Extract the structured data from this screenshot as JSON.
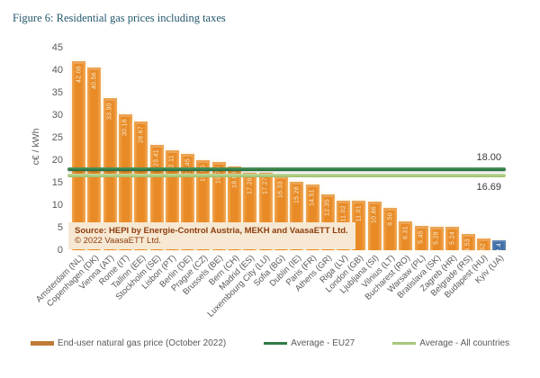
{
  "figure": {
    "title": "Figure 6: Residential gas prices including taxes",
    "title_color": "#24586c"
  },
  "chart_data": {
    "type": "bar",
    "title": "Figure 6: Residential gas prices including taxes",
    "xlabel": "",
    "ylabel": "c€ /  kWh",
    "ylim": [
      0,
      45
    ],
    "yticks": [
      0,
      5,
      10,
      15,
      20,
      25,
      30,
      35,
      40,
      45
    ],
    "grid": false,
    "categories": [
      "Amsterdam (NL)",
      "Copenhagen (DK)",
      "Vienna (AT)",
      "Rome (IT)",
      "Tallinn (EE)",
      "Stockholm (SE)",
      "Lisbon (PT)",
      "Berlin (DE)",
      "Prague (CZ)",
      "Brussels (BE)",
      "Bern (CH)",
      "Madrid (ES)",
      "Luxembourg City (LU)",
      "Sofia (BG)",
      "Dublin (IE)",
      "Paris (FR)",
      "Athens (GR)",
      "Riga (LV)",
      "London (GB)",
      "Ljubljana (SI)",
      "Vilnius (LT)",
      "Bucharest (RO)",
      "Warsaw (PL)",
      "Bratislava (SK)",
      "Zagreb (HR)",
      "Belgrade (RS)",
      "Budapest (HU)",
      "Kyiv (UA)"
    ],
    "values": [
      42.08,
      40.56,
      33.9,
      30.16,
      28.67,
      23.41,
      22.11,
      21.45,
      19.95,
      19.7,
      18.63,
      17.28,
      17.27,
      16.33,
      15.28,
      14.51,
      12.35,
      11.02,
      11.01,
      10.86,
      9.5,
      6.31,
      5.45,
      5.28,
      5.24,
      3.53,
      2.52,
      2.4
    ],
    "bar_labels": [
      "42.08",
      "40.56",
      "33.90",
      "30.16",
      "28.67",
      "23.41",
      "22.11",
      "21.45",
      "19.95",
      "19.70",
      "18.63",
      "17.28",
      "17.27",
      "16.33",
      "15.28",
      "14.51",
      "12.35",
      "11.02",
      "11.01",
      "10.86",
      "9.50",
      "6.31",
      "5.45",
      "5.28",
      "5.24",
      "3.53",
      "2.52",
      "2.4"
    ],
    "bar_color": "#e88a25",
    "highlighted_bar": {
      "index": 27,
      "category": "Kyiv (UA)",
      "color": "#3c6ba5"
    },
    "reference_lines": [
      {
        "name": "Average - EU27",
        "value": 18.0,
        "label": "18.00",
        "color": "#2e7d46"
      },
      {
        "name": "Average - All countries",
        "value": 16.69,
        "label": "16.69",
        "color": "#a8c87e"
      }
    ],
    "legend_position": "bottom",
    "legend": [
      {
        "label": "End-user natural gas price (October 2022)",
        "type": "bar",
        "color": "#bf7b36"
      },
      {
        "label": "Average - EU27",
        "type": "line",
        "color": "#2e7d46"
      },
      {
        "label": "Average - All countries",
        "type": "line",
        "color": "#a8c87e"
      }
    ]
  },
  "source_box": {
    "line1": "Source: HEPI by Energie-Control Austria, MEKH and VaasaETT Ltd.",
    "line2": "© 2022 VaasaETT Ltd."
  }
}
